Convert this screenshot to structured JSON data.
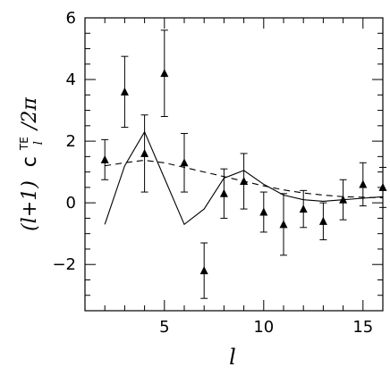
{
  "chart_data": {
    "type": "scatter",
    "xlabel": "l",
    "ylabel_prefix": "(l+1)",
    "ylabel_symbol": "c",
    "ylabel_sup": "TE",
    "ylabel_sub": "l",
    "ylabel_suffix": "/2π",
    "xlim": [
      1,
      16
    ],
    "ylim": [
      -3.5,
      6
    ],
    "x_ticks": [
      5,
      10,
      15
    ],
    "y_ticks": [
      -2,
      0,
      2,
      4,
      6
    ],
    "grid": false,
    "series": [
      {
        "kind": "points_with_errorbars",
        "marker": "filled-triangle",
        "x": [
          2,
          3,
          4,
          5,
          6,
          7,
          8,
          9,
          10,
          11,
          12,
          13,
          14,
          15,
          16
        ],
        "y": [
          1.4,
          3.6,
          1.6,
          4.2,
          1.3,
          -2.2,
          0.3,
          0.7,
          -0.3,
          -0.7,
          -0.2,
          -0.6,
          0.1,
          0.6,
          0.5
        ],
        "err": [
          0.65,
          1.15,
          1.25,
          1.4,
          0.95,
          0.9,
          0.8,
          0.9,
          0.65,
          1.0,
          0.6,
          0.6,
          0.65,
          0.7,
          0.65
        ]
      },
      {
        "kind": "line",
        "style": "solid",
        "x": [
          2,
          3,
          4,
          5,
          6,
          7,
          8,
          9,
          10,
          11,
          12,
          13,
          14,
          15,
          16
        ],
        "y": [
          -0.7,
          1.2,
          2.3,
          0.8,
          -0.7,
          -0.2,
          0.8,
          1.05,
          0.6,
          0.25,
          0.1,
          0.05,
          0.1,
          0.15,
          0.2
        ]
      },
      {
        "kind": "line",
        "style": "dashed",
        "x": [
          2,
          3,
          4,
          5,
          6,
          7,
          8,
          9,
          10,
          11,
          12,
          13,
          14,
          15,
          16
        ],
        "y": [
          1.2,
          1.3,
          1.38,
          1.3,
          1.15,
          1.0,
          0.85,
          0.7,
          0.55,
          0.42,
          0.32,
          0.25,
          0.2,
          0.18,
          0.16
        ]
      }
    ]
  }
}
